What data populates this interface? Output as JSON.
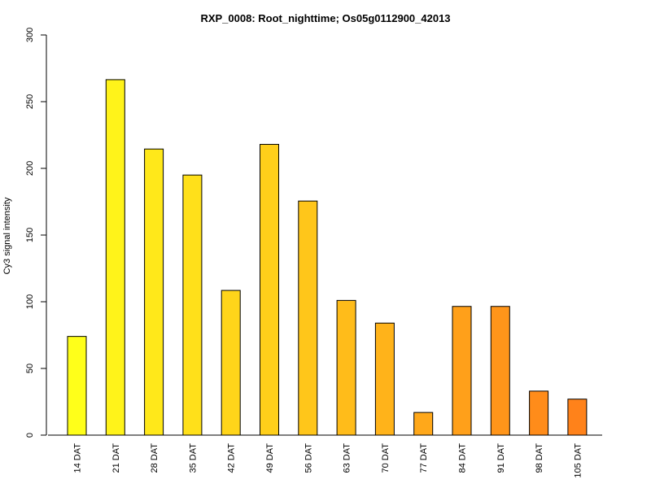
{
  "chart_data": {
    "type": "bar",
    "title": "RXP_0008: Root_nighttime; Os05g0112900_42013",
    "xlabel": "",
    "ylabel": "Cy3 signal intensity",
    "ylim": [
      0,
      300
    ],
    "yticks": [
      0,
      50,
      100,
      150,
      200,
      250,
      300
    ],
    "categories": [
      "14 DAT",
      "21 DAT",
      "28 DAT",
      "35 DAT",
      "42 DAT",
      "49 DAT",
      "56 DAT",
      "63 DAT",
      "70 DAT",
      "77 DAT",
      "84 DAT",
      "91 DAT",
      "98 DAT",
      "105 DAT"
    ],
    "values": [
      74,
      266.5,
      214.5,
      195,
      108.5,
      218,
      175.5,
      101,
      84,
      17,
      96.5,
      96.5,
      33,
      27
    ],
    "colors": [
      "#FFFF1A",
      "#FFF31A",
      "#FFE81A",
      "#FFE01A",
      "#FFD51A",
      "#FFCF1A",
      "#FFC61A",
      "#FFBC1A",
      "#FFB31A",
      "#FFA81A",
      "#FFA01A",
      "#FF951A",
      "#FF8C1A",
      "#FF821A"
    ],
    "grid": false,
    "legend": "none"
  }
}
